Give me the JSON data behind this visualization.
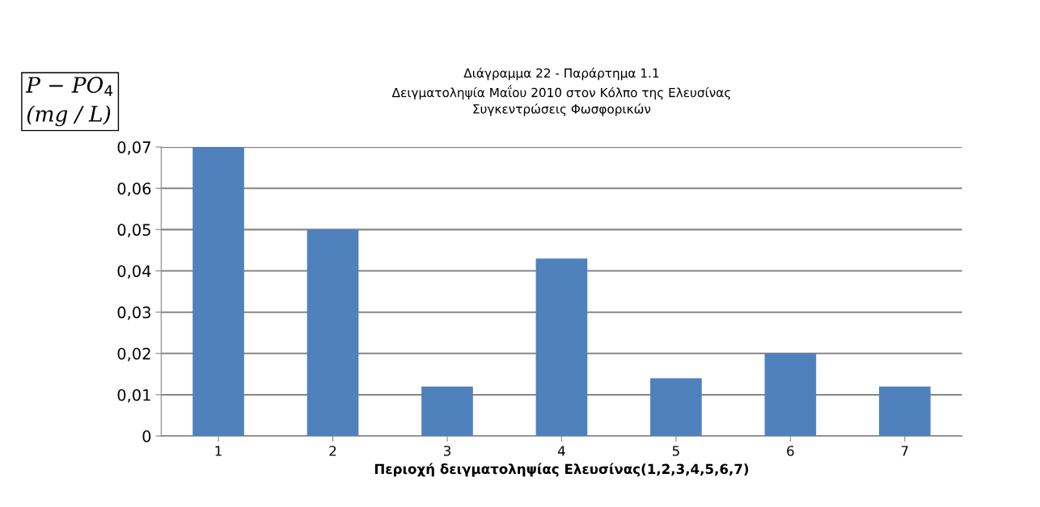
{
  "chart_data": {
    "type": "bar",
    "title": "Διάγραμμα 22 - Παράρτημα 1.1\nΔειγματοληψία Μαΐου 2010 στον Κόλπο της Ελευσίνας\nΣυγκεντρώσεις Φωσφορικών",
    "xlabel": "Περιοχή δειγματοληψίας Ελευσίνας(1,2,3,4,5,6,7)",
    "ylabel": "P − PO$_{4}$\n(mg / L)",
    "categories": [
      "1",
      "2",
      "3",
      "4",
      "5",
      "6",
      "7"
    ],
    "values": [
      0.07,
      0.05,
      0.012,
      0.043,
      0.014,
      0.02,
      0.012
    ],
    "color": "#4f81bd",
    "ylim": [
      0,
      0.07
    ],
    "yticks": [
      {
        "value": 0,
        "label": "0"
      },
      {
        "value": 0.01,
        "label": "0,01"
      },
      {
        "value": 0.02,
        "label": "0,02"
      },
      {
        "value": 0.03,
        "label": "0,03"
      },
      {
        "value": 0.04,
        "label": "0,04"
      },
      {
        "value": 0.05,
        "label": "0,05"
      },
      {
        "value": 0.06,
        "label": "0,06"
      },
      {
        "value": 0.07,
        "label": "0,07"
      }
    ],
    "grid": "y"
  }
}
